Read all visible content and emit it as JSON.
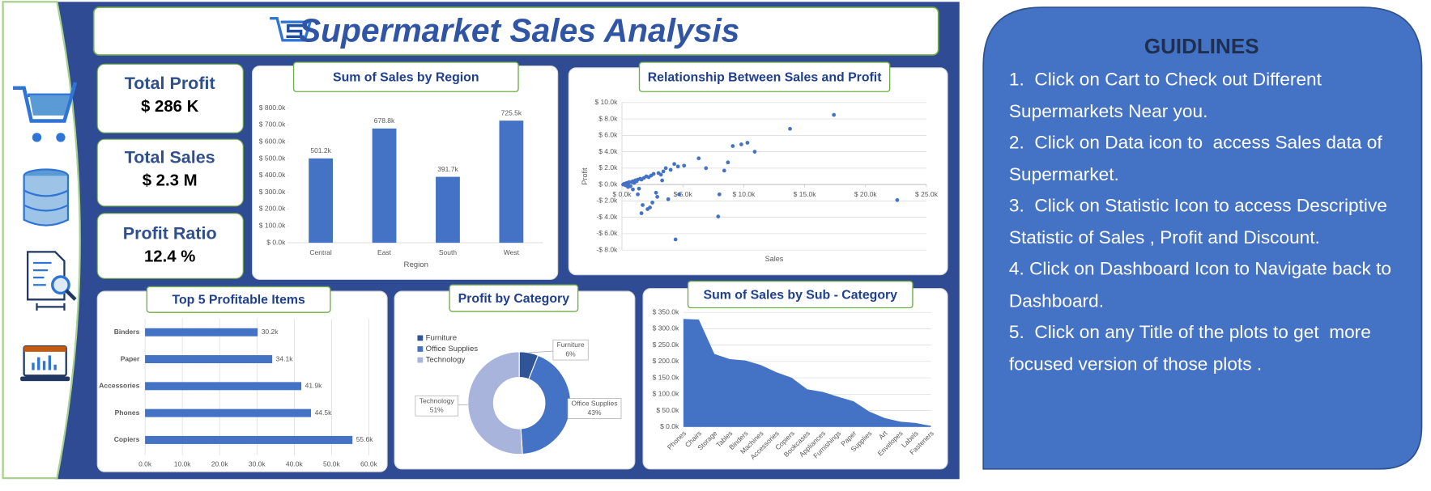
{
  "header": {
    "title": "Supermarket Sales Analysis"
  },
  "kpis": [
    {
      "label": "Total Profit",
      "value": "$ 286 K"
    },
    {
      "label": "Total Sales",
      "value": "$ 2.3 M"
    },
    {
      "label": "Profit Ratio",
      "value": "12.4 %"
    }
  ],
  "guidelines": {
    "title": "GUIDLINES",
    "items": [
      "1.  Click on Cart to Check out Different Supermarkets Near you.",
      "2.  Click on Data icon to  access Sales data of Supermarket.",
      "3.  Click on Statistic Icon to access Descriptive Statistic of Sales , Profit and Discount.",
      "4. Click on Dashboard Icon to Navigate back to Dashboard.",
      "5.  Click on any Title of the plots to get  more focused version of those plots ."
    ]
  },
  "chart_data": [
    {
      "type": "bar",
      "title": "Sum of Sales by Region",
      "x_label": "Region",
      "categories": [
        "Central",
        "East",
        "South",
        "West"
      ],
      "values": [
        501.2,
        678.8,
        391.7,
        725.5
      ],
      "value_labels": [
        "501.2k",
        "678.8k",
        "391.7k",
        "725.5k"
      ],
      "color": "#4472c4",
      "ylim": [
        0,
        800
      ],
      "yticks": [
        {
          "value": 0,
          "label": "$ 0.0k"
        },
        {
          "value": 100,
          "label": "$ 100.0k"
        },
        {
          "value": 200,
          "label": "$ 200.0k"
        },
        {
          "value": 300,
          "label": "$ 300.0k"
        },
        {
          "value": 400,
          "label": "$ 400.0k"
        },
        {
          "value": 500,
          "label": "$ 500.0k"
        },
        {
          "value": 600,
          "label": "$ 600.0k"
        },
        {
          "value": 700,
          "label": "$ 700.0k"
        },
        {
          "value": 800,
          "label": "$ 800.0k"
        }
      ],
      "grid": false
    },
    {
      "type": "scatter",
      "title": "Relationship Between Sales and Profit",
      "x_label": "Sales",
      "y_label": "Profit",
      "color": "#4472c4",
      "x": [
        0.1,
        0.2,
        0.3,
        0.4,
        0.5,
        0.6,
        0.7,
        0.8,
        0.9,
        1.0,
        1.1,
        1.2,
        1.3,
        1.4,
        1.5,
        1.6,
        1.8,
        2.0,
        2.2,
        2.4,
        2.6,
        2.8,
        3.0,
        3.2,
        3.4,
        3.6,
        3.8,
        4.0,
        4.3,
        4.6,
        0.5,
        0.9,
        1.3,
        1.7,
        2.1,
        2.5,
        2.9,
        3.3,
        1.6,
        2.3,
        4.4,
        4.7,
        5.1,
        6.3,
        6.9,
        7.9,
        8.0,
        8.4,
        8.7,
        9.1,
        9.8,
        10.3,
        10.9,
        13.8,
        17.4,
        22.6
      ],
      "y": [
        0.0,
        0.1,
        -0.1,
        0.2,
        0.1,
        0.3,
        -0.2,
        0.3,
        0.4,
        0.2,
        0.5,
        0.4,
        0.6,
        -0.5,
        0.7,
        0.6,
        0.8,
        1.0,
        0.9,
        1.1,
        1.3,
        -1.0,
        1.4,
        1.2,
        1.6,
        2.0,
        -1.8,
        1.8,
        2.5,
        2.2,
        -0.3,
        -0.6,
        -1.2,
        -2.5,
        -3.0,
        -2.2,
        -1.5,
        0.5,
        -3.5,
        -2.8,
        -6.7,
        -1.2,
        2.3,
        3.2,
        2.0,
        -3.9,
        -1.2,
        1.7,
        2.7,
        4.7,
        4.9,
        5.1,
        4.0,
        6.8,
        8.5,
        -1.9
      ],
      "xlim": [
        0,
        25
      ],
      "xticks": [
        {
          "value": 0,
          "label": "$ 0.0k"
        },
        {
          "value": 5,
          "label": "$ 5.0k"
        },
        {
          "value": 10,
          "label": "$ 10.0k"
        },
        {
          "value": 15,
          "label": "$ 15.0k"
        },
        {
          "value": 20,
          "label": "$ 20.0k"
        },
        {
          "value": 25,
          "label": "$ 25.0k"
        }
      ],
      "ylim": [
        -8,
        10
      ],
      "yticks": [
        {
          "value": -8,
          "label": "-$ 8.0k"
        },
        {
          "value": -6,
          "label": "-$ 6.0k"
        },
        {
          "value": -4,
          "label": "-$ 4.0k"
        },
        {
          "value": -2,
          "label": "-$ 2.0k"
        },
        {
          "value": 0,
          "label": "$ 0.0k"
        },
        {
          "value": 2,
          "label": "$ 2.0k"
        },
        {
          "value": 4,
          "label": "$ 4.0k"
        },
        {
          "value": 6,
          "label": "$ 6.0k"
        },
        {
          "value": 8,
          "label": "$ 8.0k"
        },
        {
          "value": 10,
          "label": "$ 10.0k"
        }
      ],
      "grid": true
    },
    {
      "type": "hbar",
      "title": "Top 5 Profitable Items",
      "categories": [
        "Binders",
        "Paper",
        "Accessories",
        "Phones",
        "Copiers"
      ],
      "values": [
        30.2,
        34.1,
        41.9,
        44.5,
        55.6
      ],
      "value_labels": [
        "30.2k",
        "34.1k",
        "41.9k",
        "44.5k",
        "55.6k"
      ],
      "color": "#4472c4",
      "xlim": [
        0,
        60
      ],
      "xticks": [
        {
          "value": 0,
          "label": "0.0k"
        },
        {
          "value": 10,
          "label": "10.0k"
        },
        {
          "value": 20,
          "label": "20.0k"
        },
        {
          "value": 30,
          "label": "30.0k"
        },
        {
          "value": 40,
          "label": "40.0k"
        },
        {
          "value": 50,
          "label": "50.0k"
        },
        {
          "value": 60,
          "label": "60.0k"
        }
      ],
      "grid": true
    },
    {
      "type": "donut",
      "title": "Profit  by Category",
      "categories": [
        "Furniture",
        "Office Supplies",
        "Technology"
      ],
      "values": [
        6,
        43,
        51
      ],
      "value_labels": [
        "6%",
        "43%",
        "51%"
      ],
      "colors": [
        "#2f5597",
        "#4472c4",
        "#a9b4dc"
      ]
    },
    {
      "type": "area",
      "title": "Sum of Sales by Sub - Category",
      "categories": [
        "Phones",
        "Chairs",
        "Storage",
        "Tables",
        "Binders",
        "Machines",
        "Accessories",
        "Copiers",
        "Bookcases",
        "Appliances",
        "Furnishings",
        "Paper",
        "Supplies",
        "Art",
        "Envelopes",
        "Labels",
        "Fasteners"
      ],
      "values": [
        330,
        328,
        223,
        207,
        203,
        189,
        167,
        150,
        115,
        107,
        92,
        78,
        47,
        27,
        16,
        12,
        3
      ],
      "color": "#4472c4",
      "ylim": [
        0,
        350
      ],
      "yticks": [
        {
          "value": 0,
          "label": "$ 0.0k"
        },
        {
          "value": 50,
          "label": "$ 50.0k"
        },
        {
          "value": 100,
          "label": "$ 100.0k"
        },
        {
          "value": 150,
          "label": "$ 150.0k"
        },
        {
          "value": 200,
          "label": "$ 200.0k"
        },
        {
          "value": 250,
          "label": "$ 250.0k"
        },
        {
          "value": 300,
          "label": "$ 300.0k"
        },
        {
          "value": 350,
          "label": "$ 350.0k"
        }
      ],
      "grid": true
    }
  ]
}
